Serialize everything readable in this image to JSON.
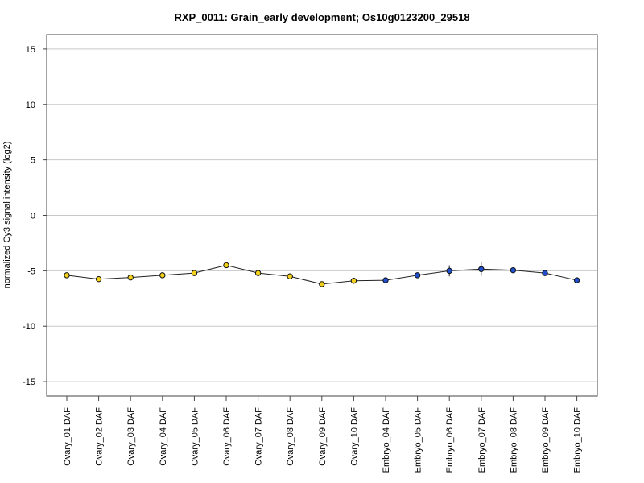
{
  "chart_data": {
    "type": "line",
    "title": "RXP_0011: Grain_early development; Os10g0123200_29518",
    "xlabel": "",
    "ylabel": "normalized Cy3 signal intensity (log2)",
    "ylim": [
      -16.3,
      16.3
    ],
    "yticks": [
      15,
      10,
      5,
      0,
      -5,
      -10,
      -15
    ],
    "grid": true,
    "legend": "none",
    "categories": [
      "Ovary_01 DAF",
      "Ovary_02 DAF",
      "Ovary_03 DAF",
      "Ovary_04 DAF",
      "Ovary_05 DAF",
      "Ovary_06 DAF",
      "Ovary_07 DAF",
      "Ovary_08 DAF",
      "Ovary_09 DAF",
      "Ovary_10 DAF",
      "Embryo_04 DAF",
      "Embryo_05 DAF",
      "Embryo_06 DAF",
      "Embryo_07 DAF",
      "Embryo_08 DAF",
      "Embryo_09 DAF",
      "Embryo_10 DAF"
    ],
    "values": [
      -5.4,
      -5.75,
      -5.6,
      -5.4,
      -5.2,
      -4.5,
      -5.2,
      -5.5,
      -6.2,
      -5.9,
      -5.85,
      -5.4,
      -5.0,
      -4.85,
      -4.95,
      -5.2,
      -5.85
    ],
    "error": [
      0,
      0,
      0,
      0,
      0,
      0,
      0,
      0,
      0,
      0,
      0,
      0,
      0.5,
      0.6,
      0,
      0,
      0
    ],
    "point_colors": [
      "#f2d21b",
      "#f2d21b",
      "#f2d21b",
      "#f2d21b",
      "#f2d21b",
      "#f2d21b",
      "#f2d21b",
      "#f2d21b",
      "#f2d21b",
      "#f2d21b",
      "#1f4fcf",
      "#1f4fcf",
      "#1f4fcf",
      "#1f4fcf",
      "#1f4fcf",
      "#1f4fcf",
      "#1f4fcf"
    ]
  }
}
